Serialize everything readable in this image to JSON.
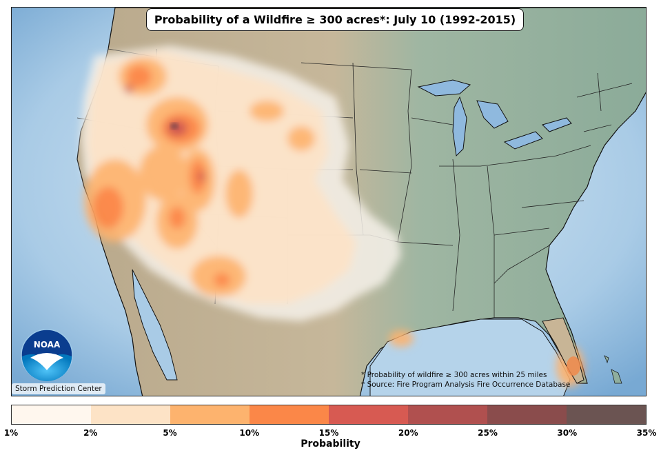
{
  "title": "Probability of a Wildfire ≥ 300 acres*: July 10 (1992-2015)",
  "notes": [
    "* Probability of wildfire  ≥  300 acres within 25 miles",
    "* Source: Fire Program Analysis Fire Occurrence Database"
  ],
  "credit": "Storm Prediction Center",
  "logo_text": "NOAA",
  "colorbar": {
    "label": "Probability",
    "ticks": [
      "1%",
      "2%",
      "5%",
      "10%",
      "15%",
      "20%",
      "25%",
      "30%",
      "35%"
    ],
    "colors": [
      "#fff7ee",
      "#fde3c6",
      "#fdb36e",
      "#fb8748",
      "#d75a52",
      "#b0504f",
      "#8a4c4c",
      "#6b5452"
    ]
  },
  "colors": {
    "land": "#b8a88a",
    "east_land": "#8fae9e",
    "water": "#8fb9de"
  }
}
